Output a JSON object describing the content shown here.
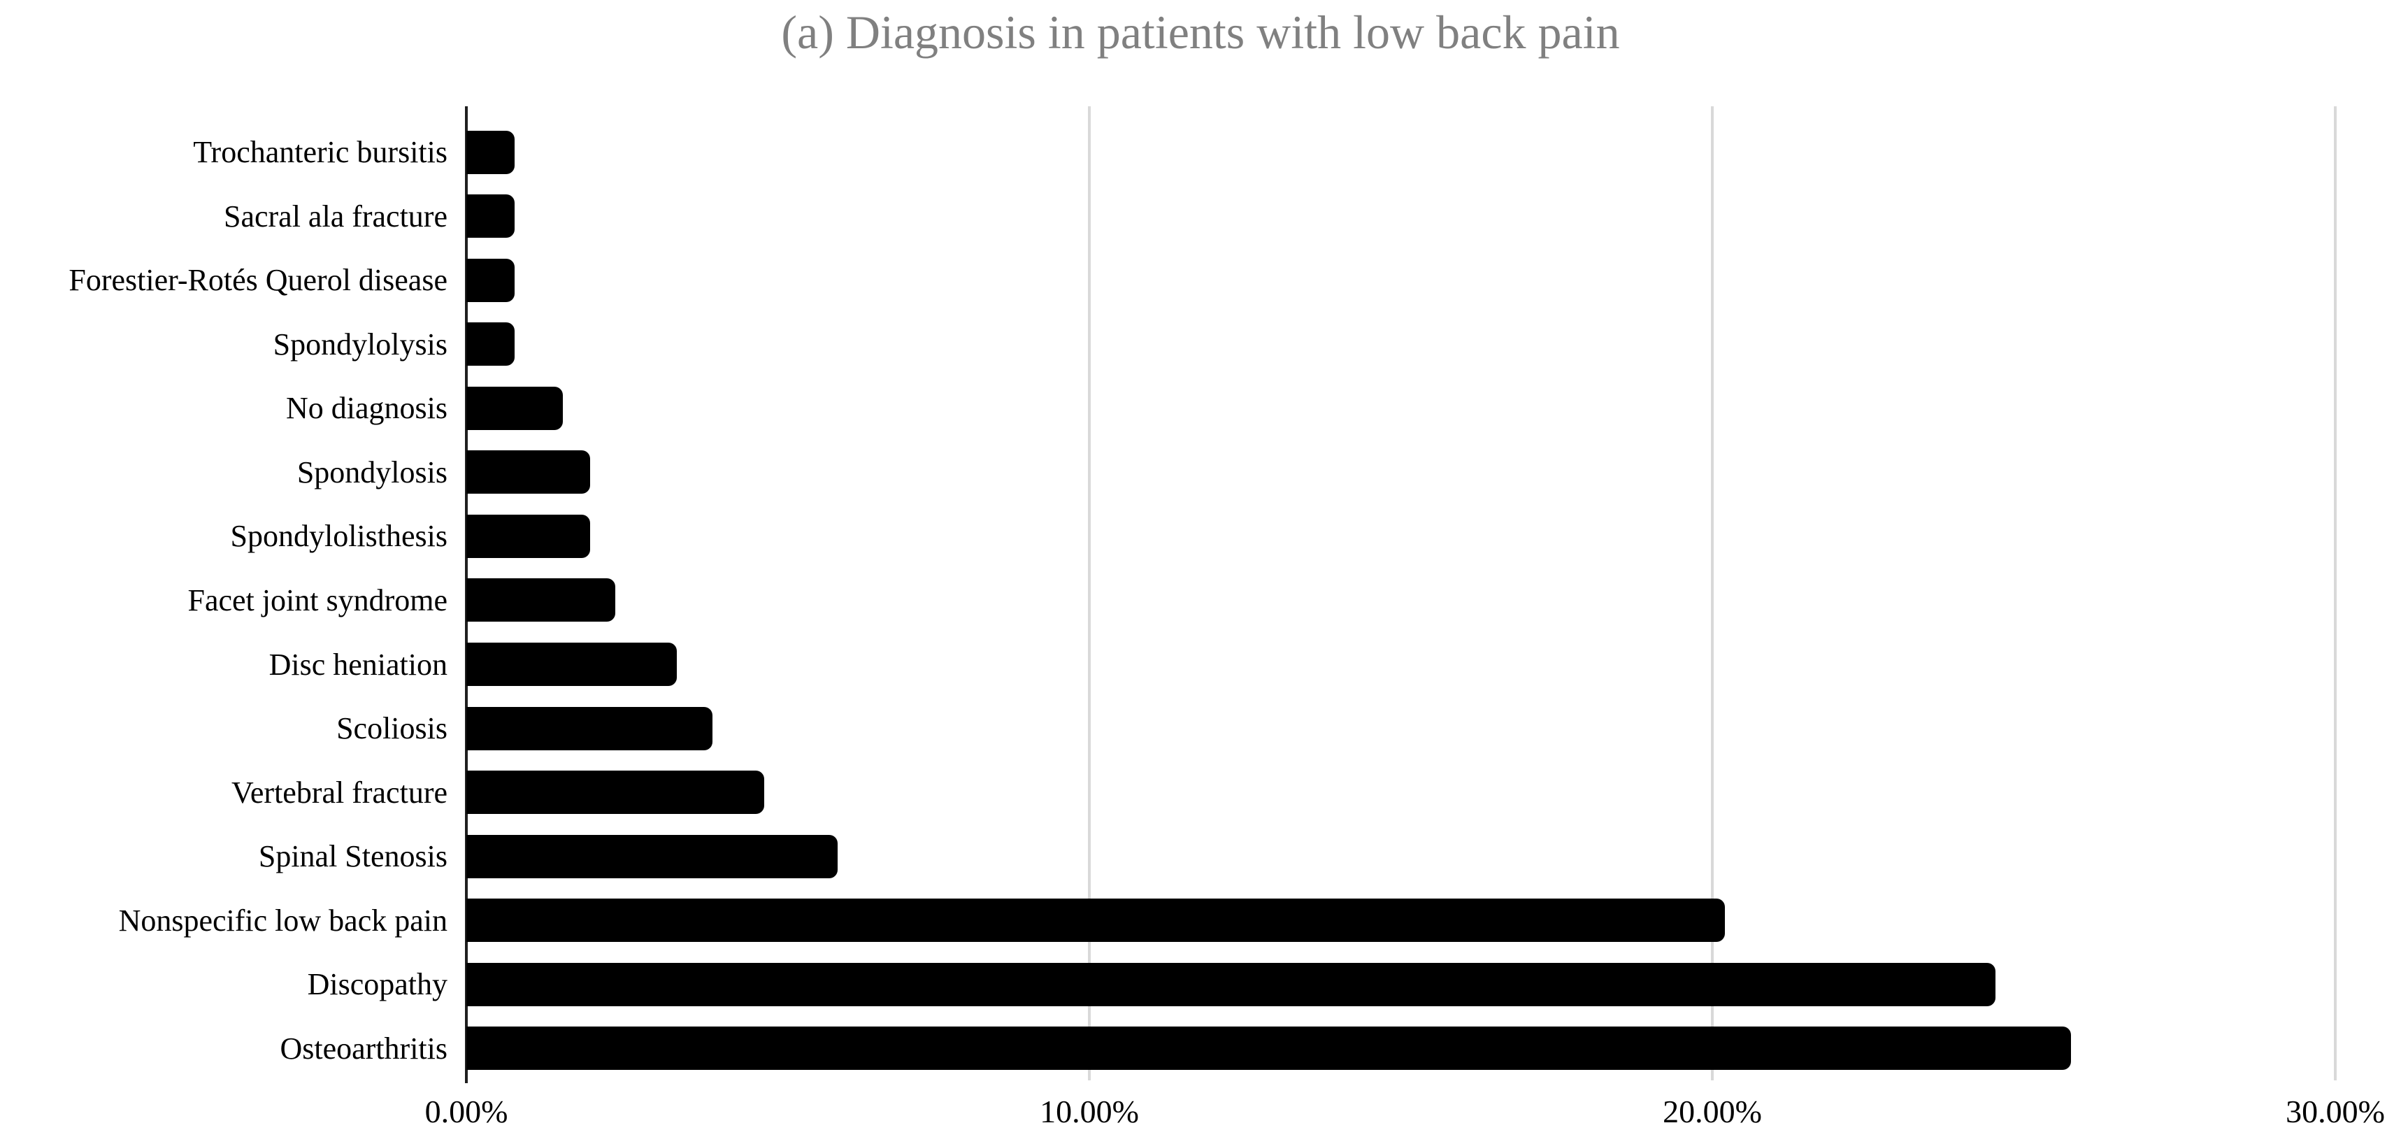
{
  "chart_data": {
    "type": "bar",
    "orientation": "horizontal",
    "title": "(a) Diagnosis in patients with low back pain",
    "xlabel": "",
    "ylabel": "",
    "xlim": [
      0,
      30
    ],
    "grid": true,
    "legend": null,
    "bar_color": "#000000",
    "title_color": "#808080",
    "gridline_color": "#d9d9d9",
    "axis_color": "#1f1f1f",
    "categories": [
      "Trochanteric bursitis",
      "Sacral ala fracture",
      "Forestier-Rotés Querol disease",
      "Spondylolysis",
      "No diagnosis",
      "Spondylosis",
      "Spondylolisthesis",
      "Facet joint syndrome",
      "Disc heniation",
      "Scoliosis",
      "Vertebral fracture",
      "Spinal Stenosis",
      "Nonspecific low back pain",
      "Discopathy",
      "Osteoarthritis"
    ],
    "values": [
      0.78,
      0.78,
      0.78,
      0.78,
      1.55,
      1.99,
      1.99,
      2.39,
      3.38,
      3.95,
      4.78,
      5.96,
      20.2,
      24.55,
      25.76
    ],
    "x_ticks": [
      {
        "label": "0.00%",
        "value": 0
      },
      {
        "label": "10.00%",
        "value": 10
      },
      {
        "label": "20.00%",
        "value": 20
      },
      {
        "label": "30.00%",
        "value": 30
      }
    ]
  }
}
